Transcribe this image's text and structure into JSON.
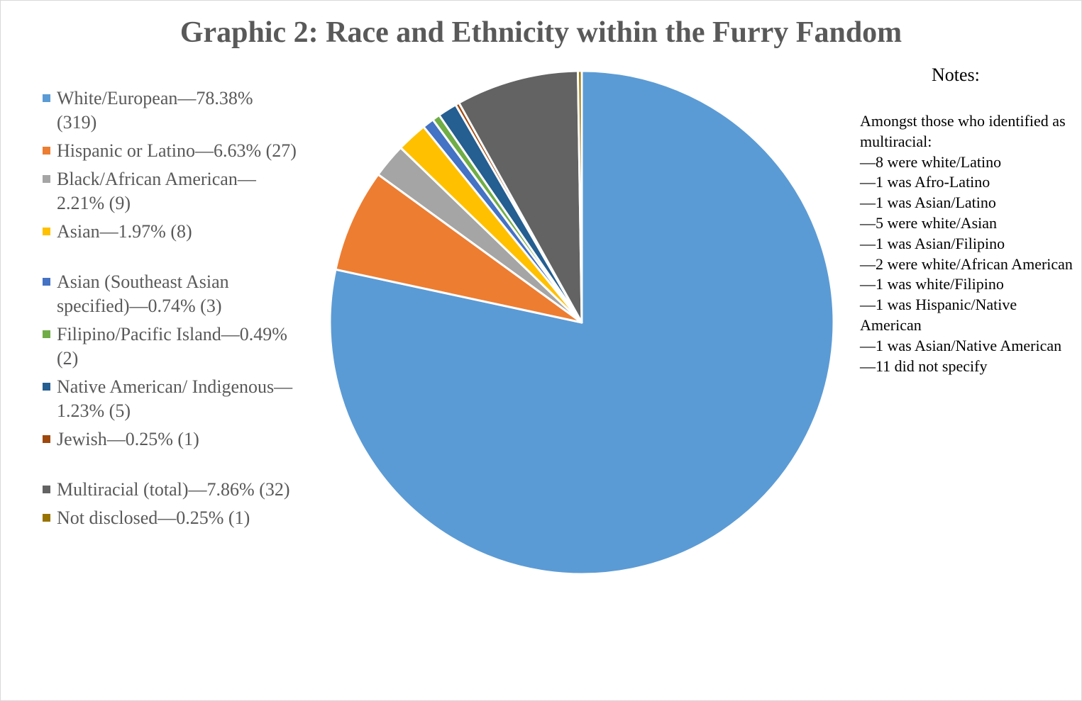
{
  "chart_data": {
    "type": "pie",
    "title": "Graphic 2: Race and Ethnicity within the Furry Fandom",
    "legend_position": "left",
    "slices": [
      {
        "label": "White/European—78.38% (319)",
        "value": 319,
        "percent": 78.38,
        "color": "#5b9bd5"
      },
      {
        "label": "Hispanic or Latino—6.63% (27)",
        "value": 27,
        "percent": 6.63,
        "color": "#ed7d31"
      },
      {
        "label": "Black/African American—2.21% (9)",
        "value": 9,
        "percent": 2.21,
        "color": "#a5a5a5"
      },
      {
        "label": "Asian—1.97% (8)",
        "value": 8,
        "percent": 1.97,
        "color": "#ffc000"
      },
      {
        "label": "Asian (Southeast Asian specified)—0.74% (3)",
        "value": 3,
        "percent": 0.74,
        "color": "#4472c4"
      },
      {
        "label": "Filipino/Pacific Island—0.49% (2)",
        "value": 2,
        "percent": 0.49,
        "color": "#70ad47"
      },
      {
        "label": "Native American/ Indigenous—1.23% (5)",
        "value": 5,
        "percent": 1.23,
        "color": "#255e91"
      },
      {
        "label": "Jewish—0.25% (1)",
        "value": 1,
        "percent": 0.25,
        "color": "#9e480e"
      },
      {
        "label": "Multiracial (total)—7.86% (32)",
        "value": 32,
        "percent": 7.86,
        "color": "#636363"
      },
      {
        "label": "Not disclosed—0.25% (1)",
        "value": 1,
        "percent": 0.25,
        "color": "#997300"
      }
    ]
  },
  "notes": {
    "title": "Notes:",
    "lines": [
      "Amongst those who identified as multiracial:",
      "—8 were white/Latino",
      "—1 was Afro-Latino",
      "—1 was Asian/Latino",
      "—5 were white/Asian",
      "—1 was Asian/Filipino",
      "—2 were white/African American",
      "—1 was white/Filipino",
      "—1 was Hispanic/Native American",
      "—1 was Asian/Native American",
      "—11 did not specify"
    ]
  }
}
